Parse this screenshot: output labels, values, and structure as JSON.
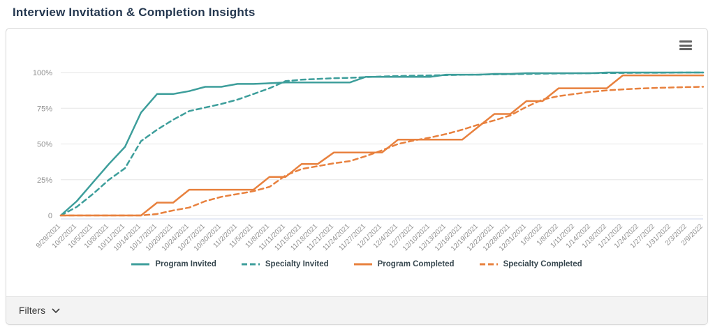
{
  "page_title": "Interview Invitation & Completion Insights",
  "card": {
    "menu_icon": "hamburger-menu-icon",
    "filters": {
      "label": "Filters",
      "icon": "chevron-down-icon"
    }
  },
  "colors": {
    "teal": "#3D9E9B",
    "orange": "#E8813E",
    "title_text": "#24374F",
    "axis_label": "#909090",
    "legend_text": "#37474F",
    "gridline": "#E6E6E6",
    "axis_line": "#CCD6EB",
    "filters_bg": "#F3F3F3"
  },
  "chart_data": {
    "type": "line",
    "title": "",
    "xlabel": "",
    "ylabel": "",
    "ylim": [
      0,
      100
    ],
    "grid": true,
    "legend_position": "bottom",
    "yticks": [
      {
        "label": "100%",
        "value": 100
      },
      {
        "label": "75%",
        "value": 75
      },
      {
        "label": "50%",
        "value": 50
      },
      {
        "label": "25%",
        "value": 25
      },
      {
        "label": "0",
        "value": 0
      }
    ],
    "categories": [
      "9/29/2021",
      "10/2/2021",
      "10/5/2021",
      "10/8/2021",
      "10/11/2021",
      "10/14/2021",
      "10/17/2021",
      "10/20/2021",
      "10/24/2021",
      "10/27/2021",
      "10/30/2021",
      "11/2/2021",
      "11/5/2021",
      "11/8/2021",
      "11/11/2021",
      "11/15/2021",
      "11/18/2021",
      "11/21/2021",
      "11/24/2021",
      "11/27/2021",
      "12/1/2021",
      "12/4/2021",
      "12/7/2021",
      "12/10/2021",
      "12/13/2021",
      "12/16/2021",
      "12/19/2021",
      "12/22/2021",
      "12/28/2021",
      "12/31/2021",
      "1/5/2022",
      "1/8/2022",
      "1/11/2022",
      "1/14/2022",
      "1/18/2022",
      "1/21/2022",
      "1/24/2022",
      "1/27/2022",
      "1/31/2022",
      "2/3/2022",
      "2/9/2022"
    ],
    "series": [
      {
        "name": "Program Invited",
        "color": "#3D9E9B",
        "dash": "solid",
        "values": [
          0,
          10,
          23,
          36,
          48,
          72,
          85,
          85,
          87,
          90,
          90,
          92,
          92,
          92.5,
          93,
          93,
          93,
          93,
          93,
          97,
          97,
          97,
          97,
          97,
          98.5,
          98.5,
          98.5,
          99,
          99,
          99.5,
          99.5,
          99.5,
          99.5,
          99.5,
          100,
          100,
          100,
          100,
          100,
          100,
          100
        ]
      },
      {
        "name": "Specialty Invited",
        "color": "#3D9E9B",
        "dash": "dashed",
        "values": [
          0,
          6,
          15,
          25,
          33,
          52,
          60,
          67,
          73,
          75.5,
          78,
          81,
          85,
          89,
          94,
          95,
          95.5,
          96,
          96.3,
          96.8,
          97.2,
          97.5,
          97.8,
          98,
          98.2,
          98.4,
          98.5,
          98.7,
          98.8,
          99,
          99.2,
          99.3,
          99.4,
          99.5,
          99.6,
          99.7,
          99.8,
          99.8,
          99.9,
          100,
          100
        ]
      },
      {
        "name": "Program Completed",
        "color": "#E8813E",
        "dash": "solid",
        "values": [
          0,
          0,
          0,
          0,
          0,
          0,
          9,
          9,
          18,
          18,
          18,
          18,
          18,
          27,
          27,
          36,
          36,
          44,
          44,
          44,
          44,
          53,
          53,
          53,
          53,
          53,
          62,
          71,
          71,
          80,
          80,
          89,
          89,
          89,
          89,
          98,
          98,
          98,
          98,
          98,
          98
        ]
      },
      {
        "name": "Specialty Completed",
        "color": "#E8813E",
        "dash": "dashed",
        "values": [
          0,
          0,
          0,
          0,
          0,
          0,
          1,
          3.5,
          5.5,
          10,
          13,
          15,
          17,
          20,
          28,
          32.5,
          34.5,
          36.5,
          38,
          41.5,
          45.5,
          50,
          52.5,
          54.5,
          57,
          60,
          63.5,
          66.5,
          70,
          76,
          81,
          83.5,
          85,
          86.5,
          87.5,
          88.2,
          88.8,
          89.2,
          89.5,
          89.8,
          90
        ]
      }
    ]
  }
}
